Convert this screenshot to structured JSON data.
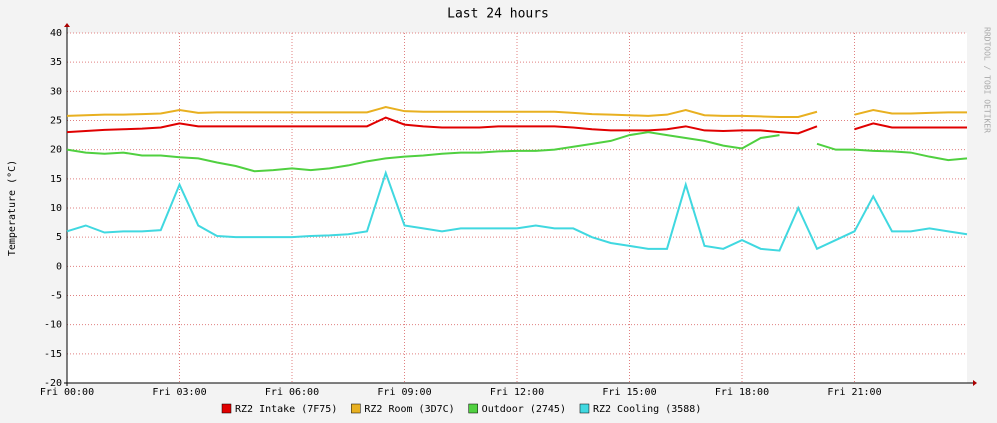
{
  "chart_data": {
    "type": "line",
    "title": "Last 24 hours",
    "y_label": "Temperature (°C)",
    "watermark": "RRDTOOL / TOBI OETIKER",
    "x": [
      0,
      0.5,
      1,
      1.5,
      2,
      2.5,
      3,
      3.5,
      4,
      4.5,
      5,
      5.5,
      6,
      6.5,
      7,
      7.5,
      8,
      8.5,
      9,
      9.5,
      10,
      10.5,
      11,
      11.5,
      12,
      12.5,
      13,
      13.5,
      14,
      14.5,
      15,
      15.5,
      16,
      16.5,
      17,
      17.5,
      18,
      18.5,
      19,
      19.5,
      20,
      20.5,
      21,
      21.5,
      22,
      22.5,
      23,
      23.5,
      24
    ],
    "xlim": [
      0,
      24
    ],
    "xticks": [
      {
        "value": 0,
        "label": "Fri 00:00"
      },
      {
        "value": 3,
        "label": "Fri 03:00"
      },
      {
        "value": 6,
        "label": "Fri 06:00"
      },
      {
        "value": 9,
        "label": "Fri 09:00"
      },
      {
        "value": 12,
        "label": "Fri 12:00"
      },
      {
        "value": 15,
        "label": "Fri 15:00"
      },
      {
        "value": 18,
        "label": "Fri 18:00"
      },
      {
        "value": 21,
        "label": "Fri 21:00"
      }
    ],
    "ylim": [
      -20,
      40
    ],
    "yticks": [
      -20,
      -15,
      -10,
      -5,
      0,
      5,
      10,
      15,
      20,
      25,
      30,
      35,
      40
    ],
    "grid": true,
    "series": [
      {
        "name": "RZ2 Intake (7F75)",
        "color": "#e00000",
        "values": [
          23,
          23.2,
          23.4,
          23.5,
          23.6,
          23.8,
          24.5,
          24,
          24,
          24,
          24,
          24,
          24,
          24,
          24,
          24,
          24,
          25.5,
          24.3,
          24,
          23.8,
          23.8,
          23.8,
          24,
          24,
          24,
          24,
          23.8,
          23.5,
          23.3,
          23.3,
          23.3,
          23.5,
          24,
          23.3,
          23.2,
          23.3,
          23.3,
          23,
          22.8,
          24,
          null,
          23.5,
          24.5,
          23.8,
          23.8,
          23.8,
          23.8,
          23.8
        ]
      },
      {
        "name": "RZ2 Room (3D7C)",
        "color": "#e8b020",
        "values": [
          25.8,
          25.9,
          26,
          26,
          26.1,
          26.2,
          26.8,
          26.3,
          26.4,
          26.4,
          26.4,
          26.4,
          26.4,
          26.4,
          26.4,
          26.4,
          26.4,
          27.3,
          26.6,
          26.5,
          26.5,
          26.5,
          26.5,
          26.5,
          26.5,
          26.5,
          26.5,
          26.3,
          26.1,
          26,
          25.9,
          25.8,
          26,
          26.8,
          25.9,
          25.8,
          25.8,
          25.7,
          25.6,
          25.6,
          26.5,
          null,
          26,
          26.8,
          26.2,
          26.2,
          26.3,
          26.4,
          26.4
        ]
      },
      {
        "name": "Outdoor (2745)",
        "color": "#50d040",
        "values": [
          20,
          19.5,
          19.3,
          19.5,
          19,
          19,
          18.7,
          18.5,
          17.8,
          17.2,
          16.3,
          16.5,
          16.8,
          16.5,
          16.8,
          17.3,
          18,
          18.5,
          18.8,
          19,
          19.3,
          19.5,
          19.5,
          19.7,
          19.8,
          19.8,
          20,
          20.5,
          21,
          21.5,
          22.5,
          23,
          22.5,
          22,
          21.5,
          20.7,
          20.2,
          22,
          22.5,
          null,
          21,
          20,
          20,
          19.8,
          19.7,
          19.5,
          18.8,
          18.2,
          18.5
        ]
      },
      {
        "name": "RZ2 Cooling (3588)",
        "color": "#40d8e0",
        "values": [
          6,
          7,
          5.8,
          6,
          6,
          6.2,
          14,
          7,
          5.2,
          5,
          5,
          5,
          5,
          5.2,
          5.3,
          5.5,
          6,
          16,
          7,
          6.5,
          6,
          6.5,
          6.5,
          6.5,
          6.5,
          7,
          6.5,
          6.5,
          5,
          4,
          3.5,
          3,
          3,
          14,
          3.5,
          3,
          4.5,
          3,
          2.7,
          10,
          3,
          4.5,
          6,
          12,
          6,
          6,
          6.5,
          6,
          5.5
        ]
      }
    ]
  }
}
